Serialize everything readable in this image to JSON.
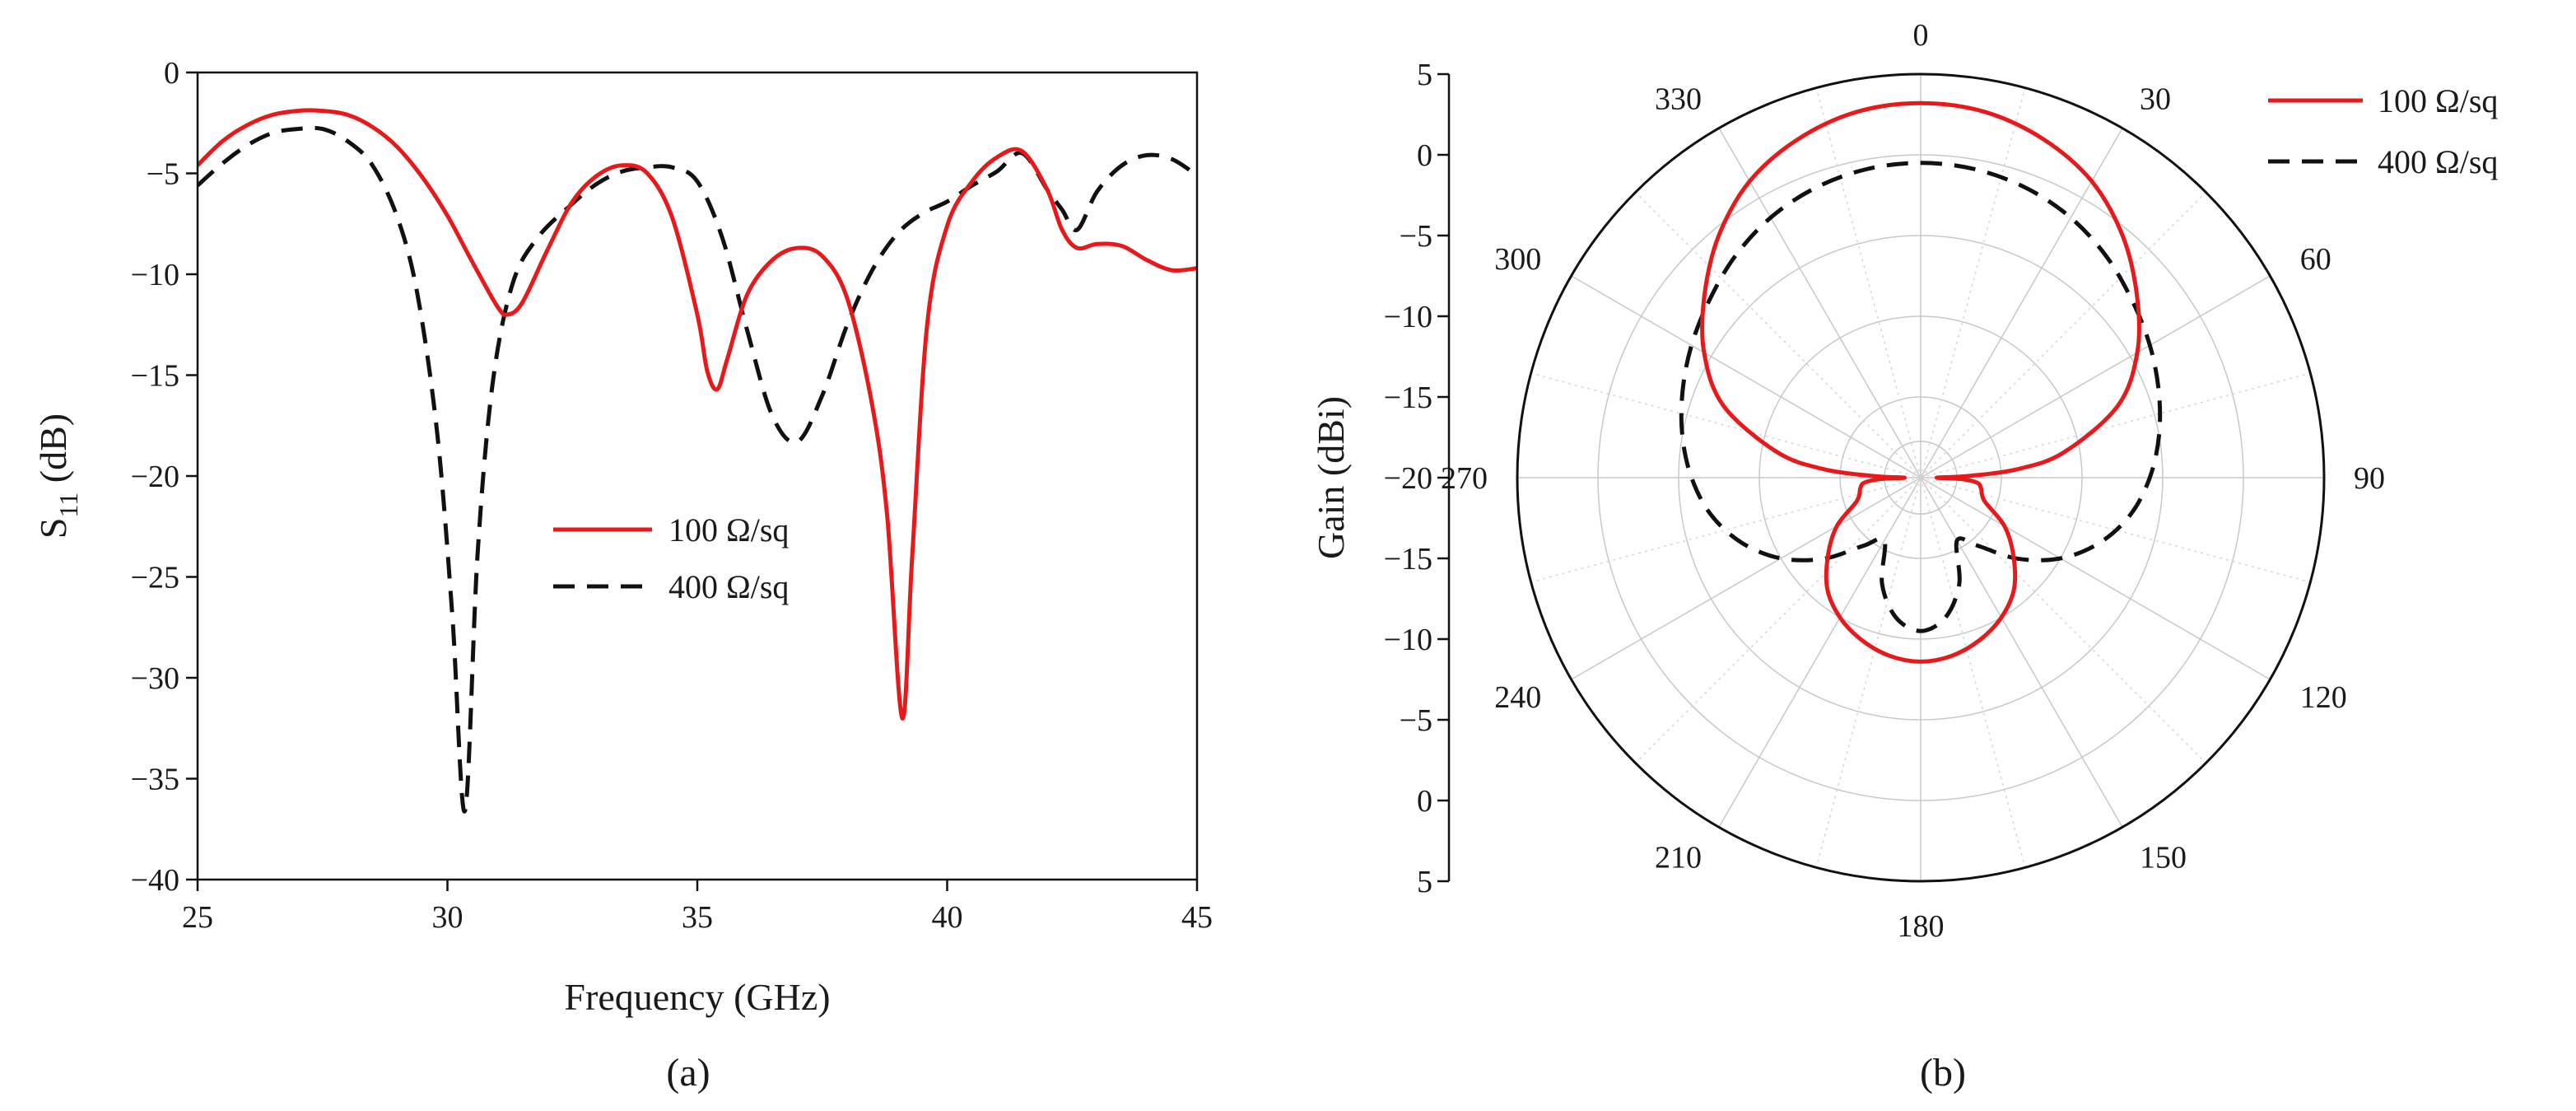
{
  "captions": {
    "a": "(a)",
    "b": "(b)"
  },
  "colors": {
    "series_100": "#e8191b",
    "series_400": "#111111"
  },
  "chart_data": [
    {
      "id": "a",
      "type": "line",
      "xlabel": "Frequency (GHz)",
      "ylabel_main": "S",
      "ylabel_sub": "11",
      "ylabel_unit": " (dB)",
      "xlim": [
        25,
        45
      ],
      "ylim": [
        -40,
        0
      ],
      "xticks": [
        25,
        30,
        35,
        40,
        45
      ],
      "yticks": [
        0,
        -5,
        -10,
        -15,
        -20,
        -25,
        -30,
        -35,
        -40
      ],
      "ytick_labels": [
        "0",
        "−5",
        "−10",
        "−15",
        "−20",
        "−25",
        "−30",
        "−35",
        "−40"
      ],
      "legend": "center-right",
      "series": [
        {
          "name": "100 Ω/sq",
          "style": "solid",
          "x": [
            25,
            25.5,
            26,
            26.5,
            27,
            27.5,
            28,
            28.5,
            29,
            29.5,
            30,
            30.5,
            31,
            31.2,
            31.5,
            32,
            32.5,
            33,
            33.5,
            34,
            34.5,
            35,
            35.2,
            35.4,
            35.6,
            36,
            36.5,
            37,
            37.5,
            38,
            38.5,
            38.8,
            39.1,
            39.3,
            39.6,
            40,
            40.5,
            41,
            41.5,
            42,
            42.3,
            42.6,
            43,
            43.5,
            44,
            44.5,
            45
          ],
          "y": [
            -4.6,
            -3.4,
            -2.6,
            -2.1,
            -1.9,
            -1.9,
            -2.1,
            -2.7,
            -3.7,
            -5.2,
            -7.1,
            -9.4,
            -11.6,
            -12.0,
            -11.4,
            -8.8,
            -6.4,
            -5.1,
            -4.6,
            -5.0,
            -7.2,
            -12.0,
            -14.8,
            -15.7,
            -14.2,
            -11.0,
            -9.3,
            -8.7,
            -9.1,
            -11.2,
            -16.5,
            -22.0,
            -32.0,
            -24.0,
            -12.5,
            -7.6,
            -5.4,
            -4.2,
            -3.9,
            -5.8,
            -7.8,
            -8.7,
            -8.5,
            -8.6,
            -9.3,
            -9.8,
            -9.7
          ]
        },
        {
          "name": "400 Ω/sq",
          "style": "dashed",
          "x": [
            25,
            25.5,
            26,
            26.5,
            27,
            27.5,
            28,
            28.5,
            29,
            29.4,
            29.8,
            30.1,
            30.35,
            30.6,
            30.9,
            31.3,
            31.8,
            32.5,
            33,
            33.5,
            34,
            34.5,
            35,
            35.5,
            36,
            36.5,
            37,
            37.5,
            38,
            38.5,
            39,
            39.5,
            40,
            40.5,
            41,
            41.5,
            42,
            42.3,
            42.6,
            43,
            43.5,
            44,
            44.5,
            45
          ],
          "y": [
            -5.6,
            -4.5,
            -3.6,
            -3.0,
            -2.8,
            -2.8,
            -3.4,
            -4.6,
            -7.2,
            -11.0,
            -18.0,
            -27.0,
            -36.6,
            -24.0,
            -15.5,
            -10.5,
            -8.2,
            -6.5,
            -5.5,
            -4.9,
            -4.7,
            -4.7,
            -5.4,
            -8.2,
            -12.8,
            -17.0,
            -18.3,
            -16.0,
            -12.5,
            -9.8,
            -8.0,
            -7.0,
            -6.4,
            -5.6,
            -4.9,
            -4.0,
            -5.8,
            -6.8,
            -7.8,
            -5.9,
            -4.6,
            -4.1,
            -4.3,
            -5.1
          ]
        }
      ]
    },
    {
      "id": "b",
      "type": "polar",
      "ylabel": "Gain (dBi)",
      "angle_ticks": [
        0,
        30,
        60,
        90,
        120,
        150,
        180,
        210,
        240,
        270,
        300,
        330
      ],
      "r_range": [
        -20,
        5
      ],
      "radial_tick_labels": [
        "5",
        "0",
        "−5",
        "−10",
        "−15",
        "−20",
        "−15",
        "−10",
        "−5",
        "0",
        "5"
      ],
      "legend": "top-right",
      "series": [
        {
          "name": "100 Ω/sq",
          "style": "solid",
          "angle": [
            0,
            10,
            20,
            30,
            40,
            50,
            60,
            70,
            80,
            85,
            88,
            90,
            92,
            95,
            100,
            110,
            120,
            130,
            140,
            150,
            160,
            170,
            180,
            190,
            200,
            210,
            220,
            230,
            240,
            250,
            260,
            265,
            268,
            270,
            272,
            275,
            280,
            290,
            300,
            310,
            320,
            330,
            340,
            350
          ],
          "r": [
            3.2,
            3.0,
            2.3,
            1.2,
            -0.5,
            -2.5,
            -4.5,
            -7.0,
            -11.0,
            -14.0,
            -17.0,
            -19.0,
            -17.5,
            -16.5,
            -16.2,
            -15.8,
            -14.0,
            -12.5,
            -11.0,
            -10.0,
            -9.3,
            -8.8,
            -8.6,
            -8.8,
            -9.3,
            -10.0,
            -11.0,
            -12.5,
            -14.0,
            -15.8,
            -16.2,
            -16.5,
            -17.5,
            -19.0,
            -17.0,
            -14.0,
            -11.0,
            -7.0,
            -4.5,
            -2.5,
            -0.5,
            1.2,
            2.3,
            3.0
          ]
        },
        {
          "name": "400 Ω/sq",
          "style": "dashed",
          "angle": [
            0,
            10,
            20,
            30,
            40,
            50,
            60,
            70,
            80,
            90,
            100,
            110,
            120,
            130,
            140,
            150,
            160,
            170,
            180,
            190,
            200,
            210,
            220,
            230,
            240,
            250,
            260,
            270,
            280,
            290,
            300,
            310,
            320,
            330,
            340,
            350
          ],
          "r": [
            -0.5,
            -0.6,
            -0.9,
            -1.4,
            -2.1,
            -2.9,
            -3.6,
            -4.3,
            -5.0,
            -5.8,
            -6.8,
            -8.2,
            -10.0,
            -12.2,
            -14.5,
            -15.5,
            -13.0,
            -11.2,
            -10.5,
            -11.2,
            -13.0,
            -15.5,
            -14.5,
            -12.2,
            -10.0,
            -8.2,
            -6.8,
            -5.8,
            -5.0,
            -4.3,
            -3.6,
            -2.9,
            -2.1,
            -1.4,
            -0.9,
            -0.6
          ]
        }
      ]
    }
  ]
}
